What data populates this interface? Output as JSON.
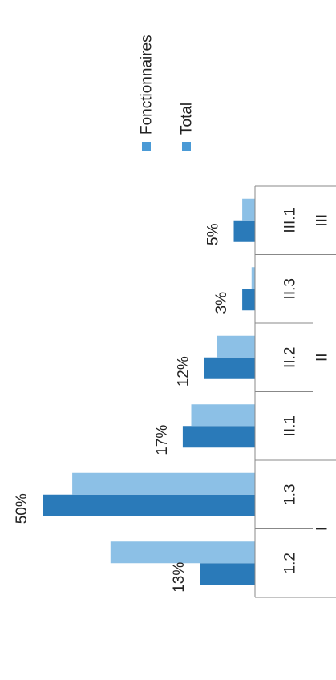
{
  "chart_data": {
    "type": "bar",
    "orientation": "rotated-90-ccw",
    "categories": [
      "1.2",
      "1.3",
      "II.1",
      "II.2",
      "II.3",
      "III.1"
    ],
    "groups": [
      {
        "label": "I",
        "categories": [
          "1.2",
          "1.3"
        ]
      },
      {
        "label": "II",
        "categories": [
          "II.1",
          "II.2",
          "II.3"
        ]
      },
      {
        "label": "III",
        "categories": [
          "III.1"
        ]
      }
    ],
    "series": [
      {
        "name": "Fonctionnaires",
        "values": [
          13,
          50,
          17,
          12,
          3,
          5
        ],
        "color": "#2a7ab9"
      },
      {
        "name": "Total",
        "values": [
          34,
          43,
          15,
          9,
          0.8,
          3
        ],
        "color": "#8cc0e6"
      }
    ],
    "data_labels": [
      "13%",
      "50%",
      "17%",
      "12%",
      "3%",
      "5%"
    ],
    "ylim": [
      0,
      55
    ],
    "legend": {
      "position": "top-right",
      "labels": [
        "Fonctionnaires",
        "Total"
      ]
    }
  }
}
